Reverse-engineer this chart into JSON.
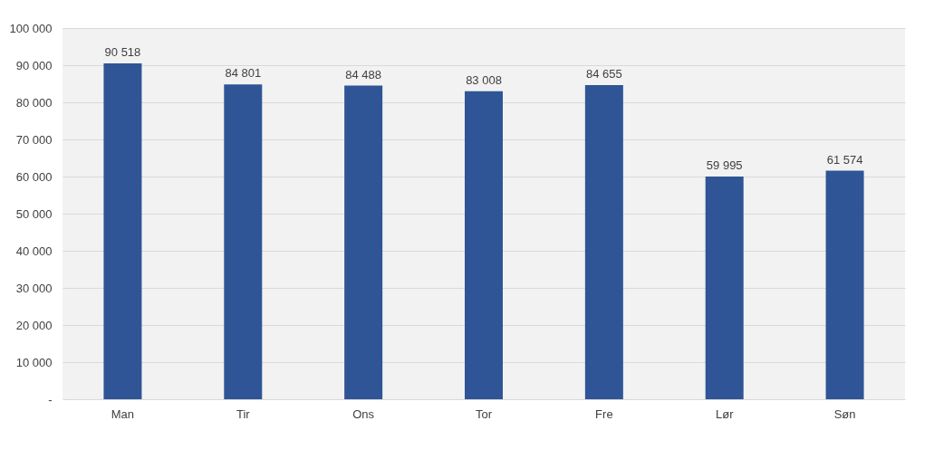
{
  "chart_data": {
    "type": "bar",
    "categories": [
      "Man",
      "Tir",
      "Ons",
      "Tor",
      "Fre",
      "Lør",
      "Søn"
    ],
    "values": [
      90518,
      84801,
      84488,
      83008,
      84655,
      59995,
      61574
    ],
    "value_labels": [
      "90 518",
      "84 801",
      "84 488",
      "83 008",
      "84 655",
      "59 995",
      "61 574"
    ],
    "color": "#2f5597",
    "ylim": [
      0,
      100000
    ],
    "yticks": [
      {
        "value": 0,
        "label": "-"
      },
      {
        "value": 10000,
        "label": "10 000"
      },
      {
        "value": 20000,
        "label": "20 000"
      },
      {
        "value": 30000,
        "label": "30 000"
      },
      {
        "value": 40000,
        "label": "40 000"
      },
      {
        "value": 50000,
        "label": "50 000"
      },
      {
        "value": 60000,
        "label": "60 000"
      },
      {
        "value": 70000,
        "label": "70 000"
      },
      {
        "value": 80000,
        "label": "80 000"
      },
      {
        "value": 90000,
        "label": "90 000"
      },
      {
        "value": 100000,
        "label": "100 000"
      }
    ],
    "grid": "y"
  }
}
